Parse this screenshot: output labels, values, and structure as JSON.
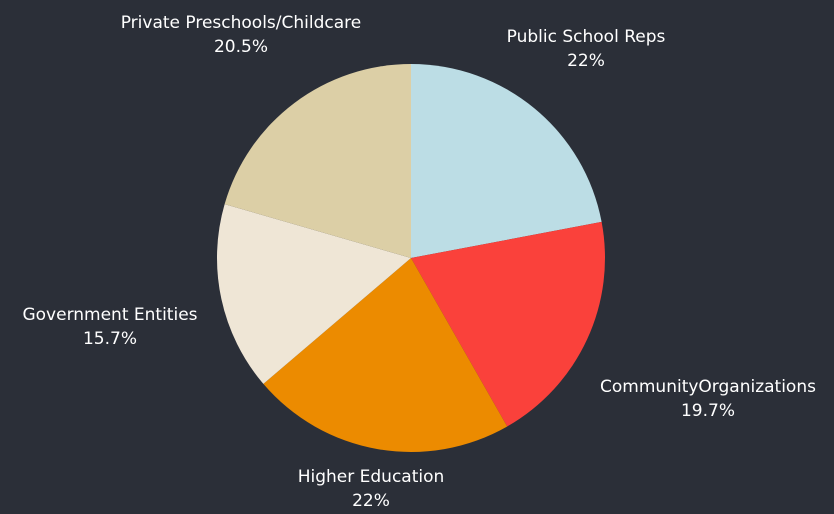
{
  "chart_data": {
    "type": "pie",
    "categories": [
      "Public School Reps",
      "CommunityOrganizations",
      "Higher Education",
      "Government Entities",
      "Private Preschools/Childcare"
    ],
    "values": [
      22,
      19.7,
      22,
      15.7,
      20.5
    ],
    "value_labels": [
      "22%",
      "19.7%",
      "22%",
      "15.7%",
      "20.5%"
    ],
    "colors": [
      "#bcdde5",
      "#fa413b",
      "#ec8b00",
      "#efe6d6",
      "#dccfa6"
    ],
    "start_angle_deg": 0,
    "direction": "clockwise",
    "background": "#2b2f38",
    "label_color": "#ffffff"
  }
}
